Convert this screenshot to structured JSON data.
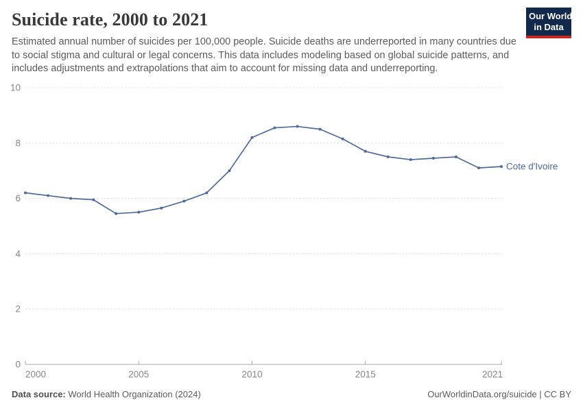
{
  "header": {
    "title": "Suicide rate, 2000 to 2021",
    "subtitle": "Estimated annual number of suicides per 100,000 people. Suicide deaths are underreported in many countries due to social stigma and cultural or legal concerns. This data includes modeling based on global suicide patterns, and includes adjustments and extrapolations that aim to account for missing data and underreporting.",
    "logo": {
      "line1": "Our World",
      "line2": "in Data",
      "bg_color": "#12294e",
      "accent_color": "#c5281c"
    }
  },
  "chart_data": {
    "type": "line",
    "title": "Suicide rate, 2000 to 2021",
    "xlabel": "",
    "ylabel": "",
    "xlim": [
      2000,
      2021
    ],
    "ylim": [
      0,
      10
    ],
    "x_ticks": [
      2000,
      2005,
      2010,
      2015,
      2021
    ],
    "y_ticks": [
      0,
      2,
      4,
      6,
      8,
      10
    ],
    "grid": "dashed-horizontal",
    "legend_position": "end-of-line-label",
    "series": [
      {
        "name": "Cote d'Ivoire",
        "color": "#4C6A9C",
        "x": [
          2000,
          2001,
          2002,
          2003,
          2004,
          2005,
          2006,
          2007,
          2008,
          2009,
          2010,
          2011,
          2012,
          2013,
          2014,
          2015,
          2016,
          2017,
          2018,
          2019,
          2020,
          2021
        ],
        "values": [
          6.2,
          6.1,
          6.0,
          5.95,
          5.45,
          5.5,
          5.65,
          5.9,
          6.2,
          7.0,
          8.2,
          8.55,
          8.6,
          8.5,
          8.15,
          7.7,
          7.5,
          7.4,
          7.45,
          7.5,
          7.1,
          7.15
        ]
      }
    ],
    "colors": {
      "gridline": "#dcdcdc",
      "axis": "#a8a8a8",
      "tick_label": "#868686"
    }
  },
  "footer": {
    "datasource_label": "Data source:",
    "datasource_value": " World Health Organization (2024)",
    "credit": "OurWorldinData.org/suicide | CC BY"
  }
}
